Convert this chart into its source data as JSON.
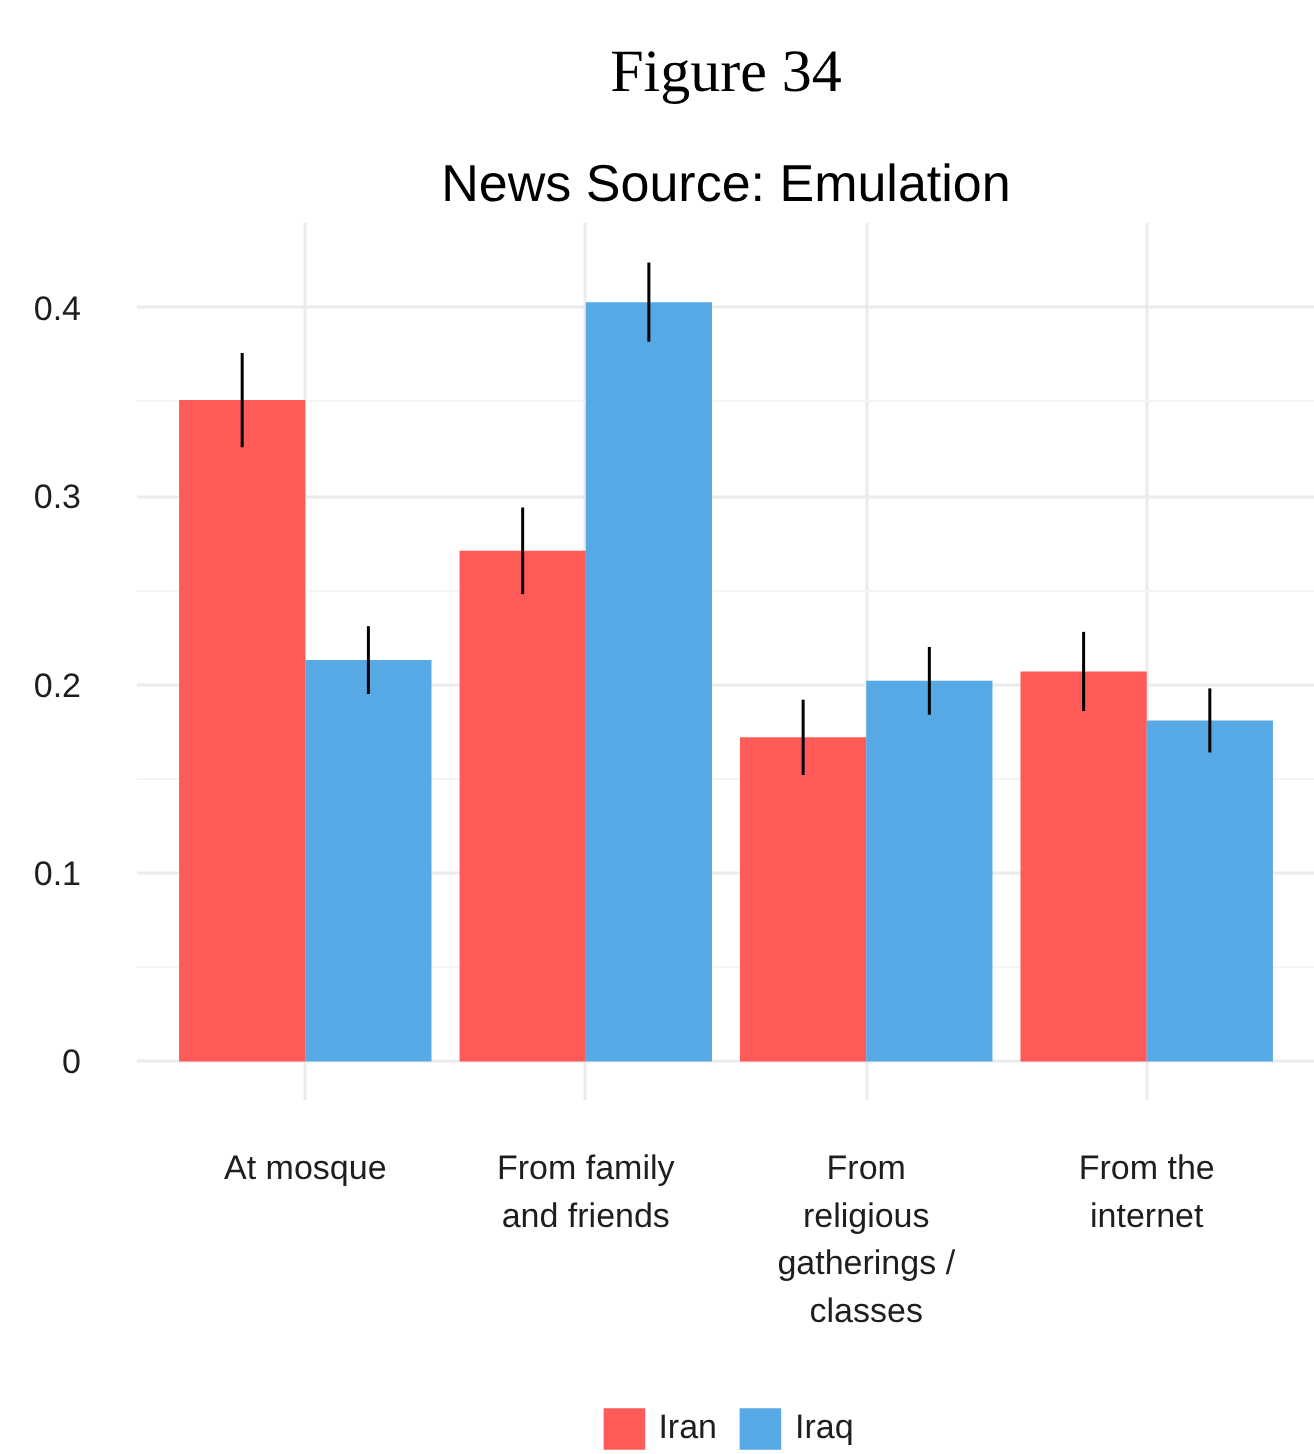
{
  "chart_data": {
    "type": "bar",
    "title": "News Source: Emulation",
    "annotations": [
      "Figure 34"
    ],
    "categories": [
      "At mosque",
      "From family and friends",
      "From religious gatherings / classes",
      "From the internet"
    ],
    "series": [
      {
        "name": "Iran",
        "color": "#fe5a57",
        "values": [
          0.351,
          0.271,
          0.172,
          0.207
        ],
        "errors": [
          0.025,
          0.023,
          0.02,
          0.021
        ]
      },
      {
        "name": "Iraq",
        "color": "#56a9e4",
        "values": [
          0.213,
          0.403,
          0.202,
          0.181
        ],
        "errors": [
          0.018,
          0.021,
          0.018,
          0.017
        ]
      }
    ],
    "ylim": [
      -0.021,
      0.445
    ],
    "yticks": [
      0,
      0.1,
      0.2,
      0.3,
      0.4
    ],
    "grid": true,
    "legend": "bottom"
  }
}
